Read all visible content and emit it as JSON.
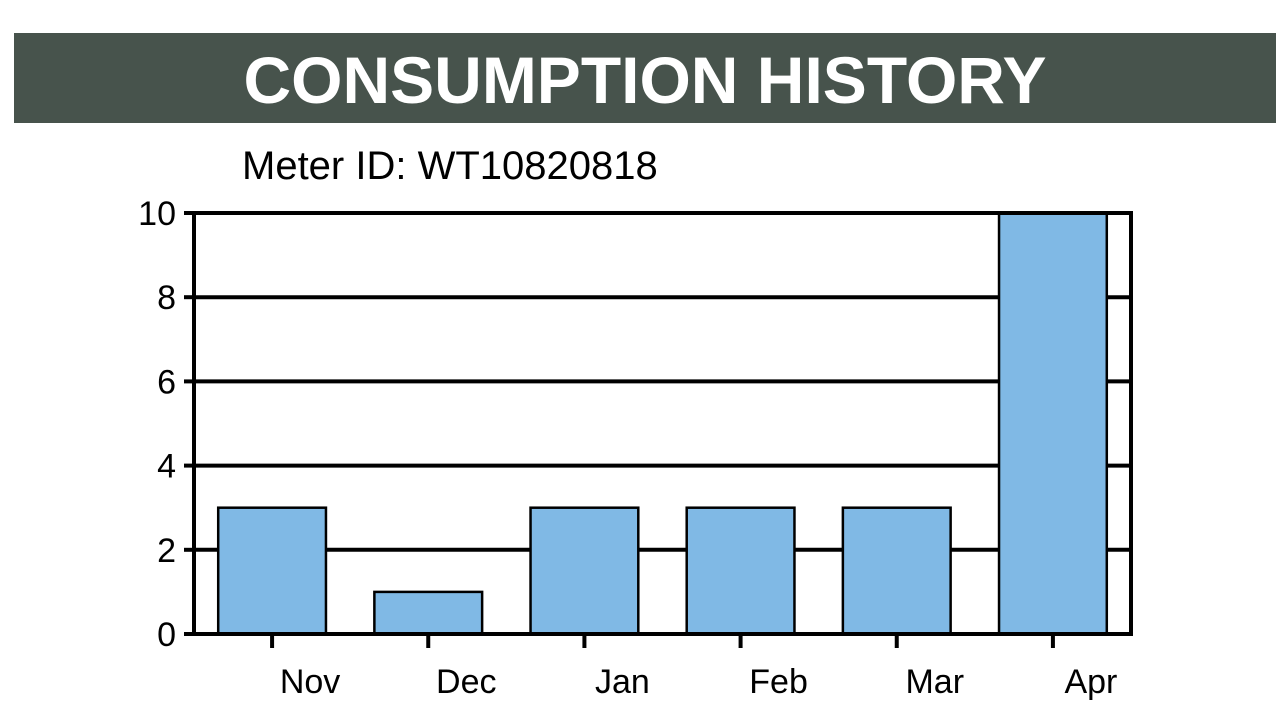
{
  "header": {
    "title": "CONSUMPTION HISTORY",
    "meter_label": "Meter ID: WT10820818"
  },
  "colors": {
    "title_bar": "#47534c",
    "bar_fill": "#80b9e5",
    "bar_stroke": "#000000"
  },
  "chart_data": {
    "type": "bar",
    "title": "CONSUMPTION HISTORY",
    "subtitle": "Meter ID: WT10820818",
    "categories": [
      "Nov",
      "Dec",
      "Jan",
      "Feb",
      "Mar",
      "Apr"
    ],
    "values": [
      3,
      1,
      3,
      3,
      3,
      10
    ],
    "ylim": [
      0,
      10
    ],
    "yticks": [
      0,
      2,
      4,
      6,
      8,
      10
    ],
    "xlabel": "",
    "ylabel": "",
    "grid": true,
    "legend": "none"
  }
}
